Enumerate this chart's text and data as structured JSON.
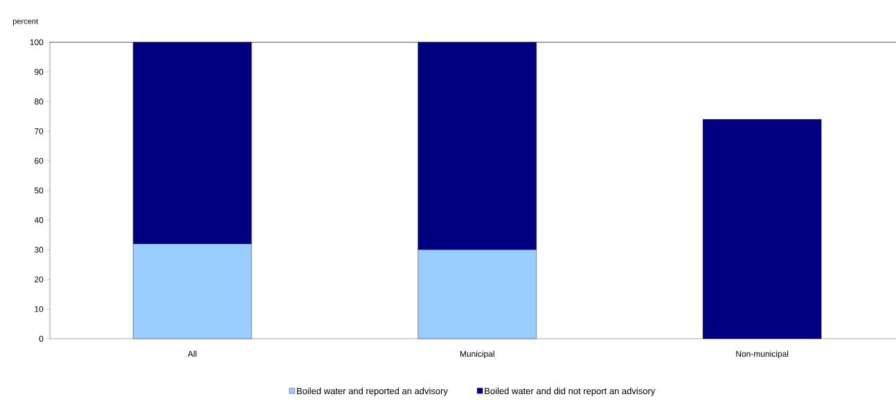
{
  "chart_data": {
    "type": "bar",
    "stacked": true,
    "ylabel": "percent",
    "categories": [
      "All",
      "Municipal",
      "Non-municipal"
    ],
    "series": [
      {
        "name": "Boiled water and reported an advisory",
        "color": "#99ccff",
        "values": [
          32,
          30,
          null
        ]
      },
      {
        "name": "Boiled water and did not report an advisory",
        "color": "#000080",
        "values": [
          68,
          70,
          74
        ]
      }
    ],
    "ylim": [
      0,
      100
    ],
    "yticks": [
      0,
      10,
      20,
      30,
      40,
      50,
      60,
      70,
      80,
      90,
      100
    ],
    "legend": "bottom"
  }
}
